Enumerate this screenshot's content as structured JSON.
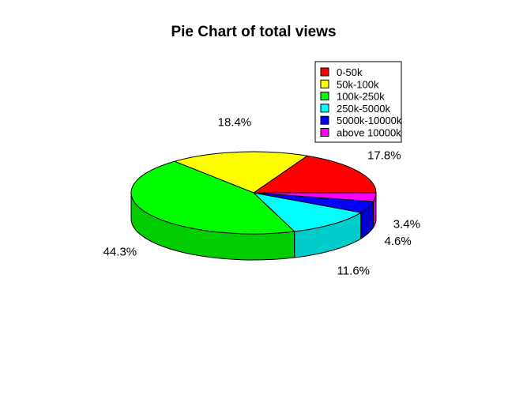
{
  "chart_data": {
    "type": "pie",
    "style": "3d",
    "title": "Pie Chart of total views",
    "categories": [
      "0-50k",
      "50k-100k",
      "100k-250k",
      "250k-5000k",
      "5000k-10000k",
      "above 10000k"
    ],
    "values": [
      17.8,
      18.4,
      44.3,
      11.6,
      4.6,
      3.4
    ],
    "labels": [
      "17.8%",
      "18.4%",
      "44.3%",
      "11.6%",
      "4.6%",
      "3.4%"
    ],
    "colors": [
      "#ff0000",
      "#ffff00",
      "#00ff00",
      "#00ffff",
      "#0000ff",
      "#ff00ff"
    ],
    "legend_position": "top-right"
  }
}
